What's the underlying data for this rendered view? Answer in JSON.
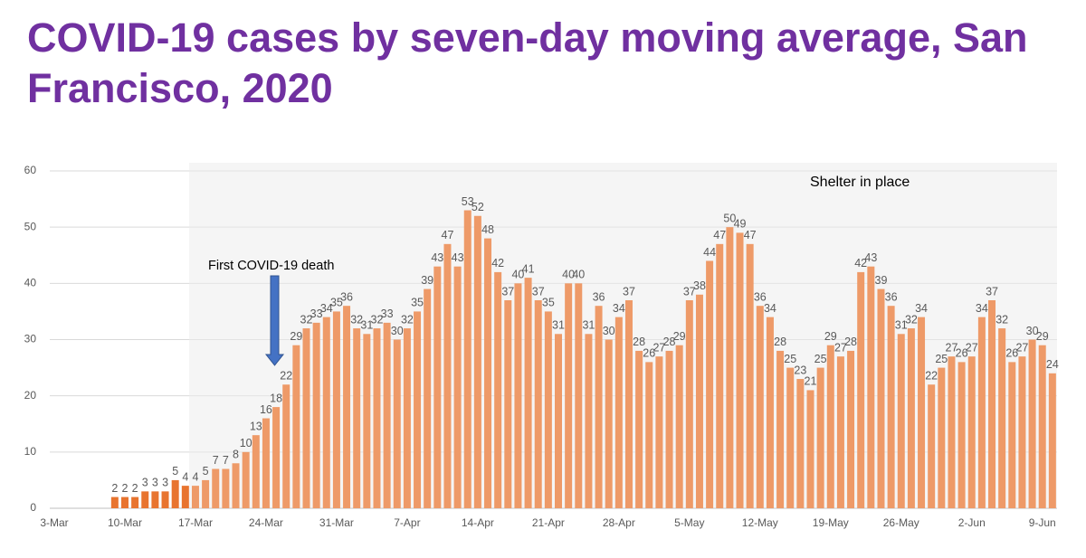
{
  "chart_data": {
    "type": "bar",
    "title": "COVID-19 cases by seven-day moving average, San Francisco, 2020",
    "categories": [
      "3-Mar",
      null,
      null,
      null,
      null,
      null,
      null,
      "10-Mar",
      null,
      null,
      null,
      null,
      null,
      null,
      "17-Mar",
      null,
      null,
      null,
      null,
      null,
      null,
      "24-Mar",
      null,
      null,
      null,
      null,
      null,
      null,
      "31-Mar",
      null,
      null,
      null,
      null,
      null,
      null,
      "7-Apr",
      null,
      null,
      null,
      null,
      null,
      null,
      "14-Apr",
      null,
      null,
      null,
      null,
      null,
      null,
      "21-Apr",
      null,
      null,
      null,
      null,
      null,
      null,
      "28-Apr",
      null,
      null,
      null,
      null,
      null,
      null,
      "5-May",
      null,
      null,
      null,
      null,
      null,
      null,
      "12-May",
      null,
      null,
      null,
      null,
      null,
      null,
      "19-May",
      null,
      null,
      null,
      null,
      null,
      null,
      "26-May",
      null,
      null,
      null,
      null,
      null,
      null,
      "2-Jun",
      null,
      null,
      null,
      null,
      null,
      null,
      "9-Jun",
      null
    ],
    "values": [
      null,
      null,
      null,
      null,
      null,
      null,
      2,
      2,
      2,
      3,
      3,
      3,
      5,
      4,
      4,
      5,
      7,
      7,
      8,
      10,
      13,
      16,
      18,
      22,
      29,
      32,
      33,
      34,
      35,
      36,
      32,
      31,
      32,
      33,
      30,
      32,
      35,
      39,
      43,
      47,
      43,
      53,
      52,
      48,
      42,
      37,
      40,
      41,
      37,
      35,
      31,
      40,
      40,
      31,
      36,
      30,
      34,
      37,
      28,
      26,
      27,
      28,
      29,
      37,
      38,
      44,
      47,
      50,
      49,
      47,
      36,
      34,
      28,
      25,
      23,
      21,
      25,
      29,
      27,
      28,
      42,
      43,
      39,
      36,
      31,
      32,
      34,
      22,
      25,
      27,
      26,
      27,
      34,
      37,
      32,
      26,
      27,
      30,
      29,
      24
    ],
    "color": "#e8742f",
    "ylim": [
      0,
      60
    ],
    "yticks": [
      0,
      10,
      20,
      30,
      40,
      50,
      60
    ],
    "grid": true,
    "annotations": [
      "First COVID-19 death",
      "Shelter in place"
    ]
  }
}
